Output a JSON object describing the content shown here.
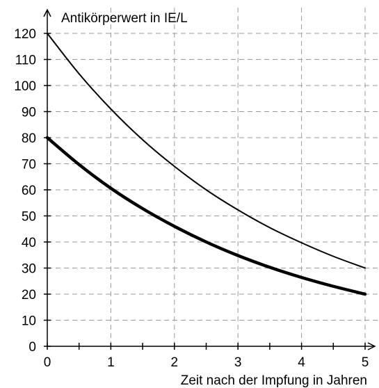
{
  "chart_data": {
    "type": "line",
    "xlabel": "Zeit nach der Impfung in Jahren",
    "ylabel": "Antikörperwert in IE/L",
    "xlim": [
      0,
      5
    ],
    "ylim": [
      0,
      120
    ],
    "x_ticks": [
      0,
      1,
      2,
      3,
      4,
      5
    ],
    "x_tick_labels": [
      "0",
      "1",
      "2",
      "3",
      "4",
      "5"
    ],
    "y_ticks": [
      0,
      10,
      20,
      30,
      40,
      50,
      60,
      70,
      80,
      90,
      100,
      110,
      120
    ],
    "y_tick_labels": [
      "0",
      "10",
      "20",
      "30",
      "40",
      "50",
      "60",
      "70",
      "80",
      "90",
      "100",
      "110",
      "120"
    ],
    "grid": true,
    "series": [
      {
        "color": "#000000",
        "style": "thin",
        "x": [
          0,
          0.5,
          1,
          1.5,
          2,
          2.5,
          3,
          3.5,
          4,
          4.5,
          5
        ],
        "y": [
          120,
          104.5,
          91,
          79.2,
          69,
          60,
          52.3,
          45.5,
          39.7,
          34.5,
          30
        ]
      },
      {
        "color": "#000000",
        "style": "thick",
        "x": [
          0,
          0.5,
          1,
          1.5,
          2,
          2.5,
          3,
          3.5,
          4,
          4.5,
          5
        ],
        "y": [
          80,
          69.7,
          60.6,
          52.8,
          46,
          40,
          34.8,
          30.3,
          26.4,
          23,
          20
        ]
      }
    ]
  }
}
